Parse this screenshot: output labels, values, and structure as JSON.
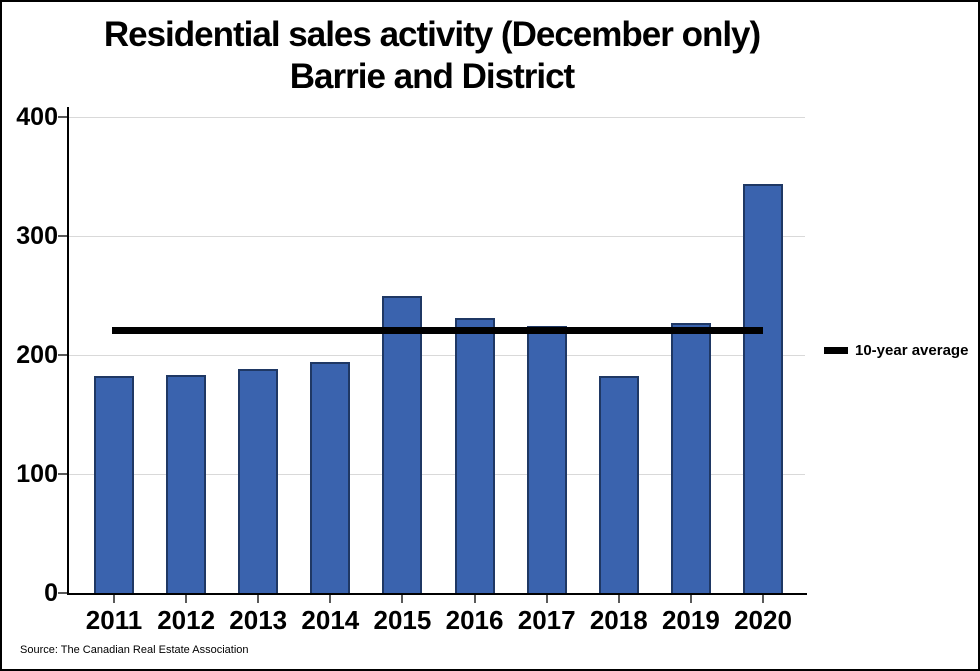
{
  "colors": {
    "bar_fill": "#3A63AE",
    "bar_border": "#1F3864",
    "average_line": "#000000",
    "gridline": "#D9D9D9",
    "tick": "#595959",
    "axis": "#000000"
  },
  "chart_data": {
    "type": "bar",
    "title": "Residential sales activity (December only)",
    "subtitle": "Barrie and District",
    "categories": [
      "2011",
      "2012",
      "2013",
      "2014",
      "2015",
      "2016",
      "2017",
      "2018",
      "2019",
      "2020"
    ],
    "values": [
      182,
      183,
      188,
      194,
      250,
      231,
      224,
      182,
      227,
      344
    ],
    "average_line": {
      "label": "10-year average",
      "value": 220.5
    },
    "ylim": [
      0,
      400
    ],
    "yticks": [
      0,
      100,
      200,
      300,
      400
    ],
    "grid": true,
    "legend_position": "right",
    "source": "Source: The Canadian Real Estate Association"
  }
}
